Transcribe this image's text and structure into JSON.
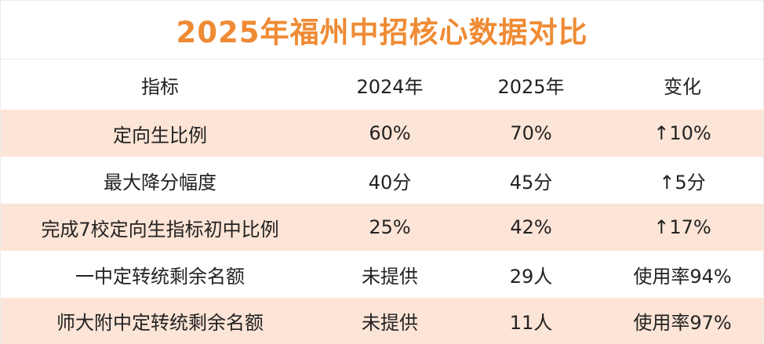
{
  "title": "2025年福州中招核心数据对比",
  "colors": {
    "title": "#ef8b34",
    "band": "#fce4d6"
  },
  "table": {
    "headers": [
      "指标",
      "2024年",
      "2025年",
      "变化"
    ],
    "rows": [
      [
        "定向生比例",
        "60%",
        "70%",
        "↑10%"
      ],
      [
        "最大降分幅度",
        "40分",
        "45分",
        "↑5分"
      ],
      [
        "完成7校定向生指标初中比例",
        "25%",
        "42%",
        "↑17%"
      ],
      [
        "一中定转统剩余名额",
        "未提供",
        "29人",
        "使用率94%"
      ],
      [
        "师大附中定转统剩余名额",
        "未提供",
        "11人",
        "使用率97%"
      ]
    ]
  }
}
